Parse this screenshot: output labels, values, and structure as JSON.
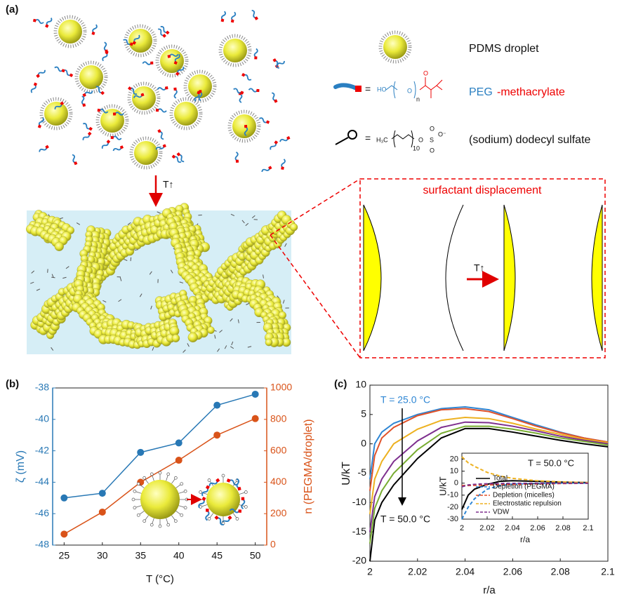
{
  "schematic": {
    "label": "(a)",
    "droplet_label": "PDMS droplet",
    "peg_label_parts": [
      "PEG",
      "-methacrylate"
    ],
    "peg_structure": [
      "HO",
      "O",
      "n",
      "O"
    ],
    "sds_label": "(sodium) dodecyl sulfate",
    "sds_structure": [
      "H₃C",
      "10",
      "O",
      "S",
      "O",
      "O",
      "O⁻"
    ],
    "equals": "=",
    "heating_label": "T↑",
    "zoom_title": "surfactant displacement"
  },
  "chart_data": [
    {
      "type": "line",
      "label": "(b)",
      "x": [
        25,
        30,
        35,
        40,
        45,
        50
      ],
      "xlim": [
        23.5,
        51.5
      ],
      "xticks": [
        25,
        30,
        35,
        40,
        45,
        50
      ],
      "xlabel": "T (°C)",
      "ylabel": "ζ (mV)",
      "ylim": [
        -48,
        -38
      ],
      "yticks": [
        -48,
        -46,
        -44,
        -42,
        -40,
        -38
      ],
      "y2label": "n (PEGMA/droplet)",
      "y2lim": [
        0,
        1000
      ],
      "y2ticks": [
        0,
        200,
        400,
        600,
        800,
        1000
      ],
      "series": [
        {
          "color": "#2878b5",
          "marker": "circle",
          "values": [
            -45.0,
            -44.7,
            -42.1,
            -41.5,
            -39.1,
            -38.4
          ]
        },
        {
          "color": "#d95319",
          "marker": "circle",
          "axis": "y2",
          "values": [
            70,
            210,
            400,
            540,
            700,
            805
          ]
        }
      ]
    },
    {
      "type": "line",
      "label": "(c)",
      "x": [
        2.0,
        2.002,
        2.005,
        2.01,
        2.02,
        2.03,
        2.04,
        2.05,
        2.06,
        2.07,
        2.08,
        2.09,
        2.1
      ],
      "xlim": [
        2,
        2.1
      ],
      "xticks": [
        2,
        2.02,
        2.04,
        2.06,
        2.08,
        2.1
      ],
      "xlabel": "r/a",
      "ylabel": "U/kT",
      "ylim": [
        -20,
        10
      ],
      "yticks": [
        -20,
        -15,
        -10,
        -5,
        0,
        5,
        10
      ],
      "annotations": [
        "T = 25.0 °C",
        "T = 50.0 °C"
      ],
      "series": [
        {
          "color": "#2e86d4",
          "values": [
            -6,
            0,
            2,
            3.5,
            5,
            6,
            6.3,
            5.8,
            4.5,
            3.2,
            2,
            1,
            0.3
          ]
        },
        {
          "color": "#e0522a",
          "values": [
            -8,
            -2,
            1,
            2.8,
            4.8,
            5.8,
            6.0,
            5.5,
            4.3,
            3,
            1.9,
            1,
            0.3
          ]
        },
        {
          "color": "#edb120",
          "values": [
            -12,
            -6,
            -3,
            0,
            2.5,
            4,
            4.5,
            4.3,
            3.5,
            2.5,
            1.6,
            0.8,
            0.2
          ]
        },
        {
          "color": "#7e2f8e",
          "values": [
            -15,
            -9,
            -6,
            -3,
            0.5,
            2.8,
            3.7,
            3.6,
            3,
            2.2,
            1.3,
            0.6,
            0
          ]
        },
        {
          "color": "#77ac30",
          "values": [
            -17,
            -11,
            -8,
            -5,
            -1,
            1.8,
            3.0,
            3.0,
            2.5,
            1.8,
            1,
            0.4,
            -0.2
          ]
        },
        {
          "color": "#000000",
          "values": [
            -20,
            -13,
            -10,
            -7,
            -2.5,
            1,
            2.6,
            2.6,
            2,
            1.3,
            0.6,
            0,
            -0.5
          ]
        }
      ]
    },
    {
      "type": "line",
      "title": "T = 50.0 °C",
      "x": [
        2.0,
        2.005,
        2.01,
        2.02,
        2.03,
        2.04,
        2.06,
        2.08,
        2.1
      ],
      "xlim": [
        2,
        2.1
      ],
      "xticks": [
        2,
        2.02,
        2.04,
        2.06,
        2.08,
        2.1
      ],
      "xlabel": "r/a",
      "ylabel": "U/kT",
      "ylim": [
        -30,
        25
      ],
      "yticks": [
        -30,
        -20,
        -10,
        0,
        10,
        20
      ],
      "legend": "lower right",
      "series": [
        {
          "name": "Total",
          "color": "#000000",
          "dashed": false,
          "values": [
            -22,
            -10,
            -5,
            -1,
            1.5,
            2,
            1.5,
            0.8,
            0.5
          ]
        },
        {
          "name": "Depletion (PEGMA)",
          "color": "#2e86d4",
          "dashed": true,
          "values": [
            -30,
            -20,
            -13,
            -5,
            -2,
            -0.8,
            -0.3,
            0,
            0
          ]
        },
        {
          "name": "Depletion (micelles)",
          "color": "#e0522a",
          "dashed": true,
          "values": [
            -2,
            -2,
            -1.8,
            -1.5,
            -1.2,
            -1,
            -0.6,
            -0.3,
            -0.1
          ]
        },
        {
          "name": "Electrostatic repulsion",
          "color": "#edb120",
          "dashed": true,
          "values": [
            22,
            17,
            14,
            9,
            6,
            4,
            2,
            1,
            0.5
          ]
        },
        {
          "name": "VDW",
          "color": "#7e2f8e",
          "dashed": true,
          "values": [
            -3,
            -1.5,
            -1,
            -0.5,
            -0.3,
            -0.2,
            -0.1,
            0,
            0
          ]
        }
      ]
    }
  ]
}
